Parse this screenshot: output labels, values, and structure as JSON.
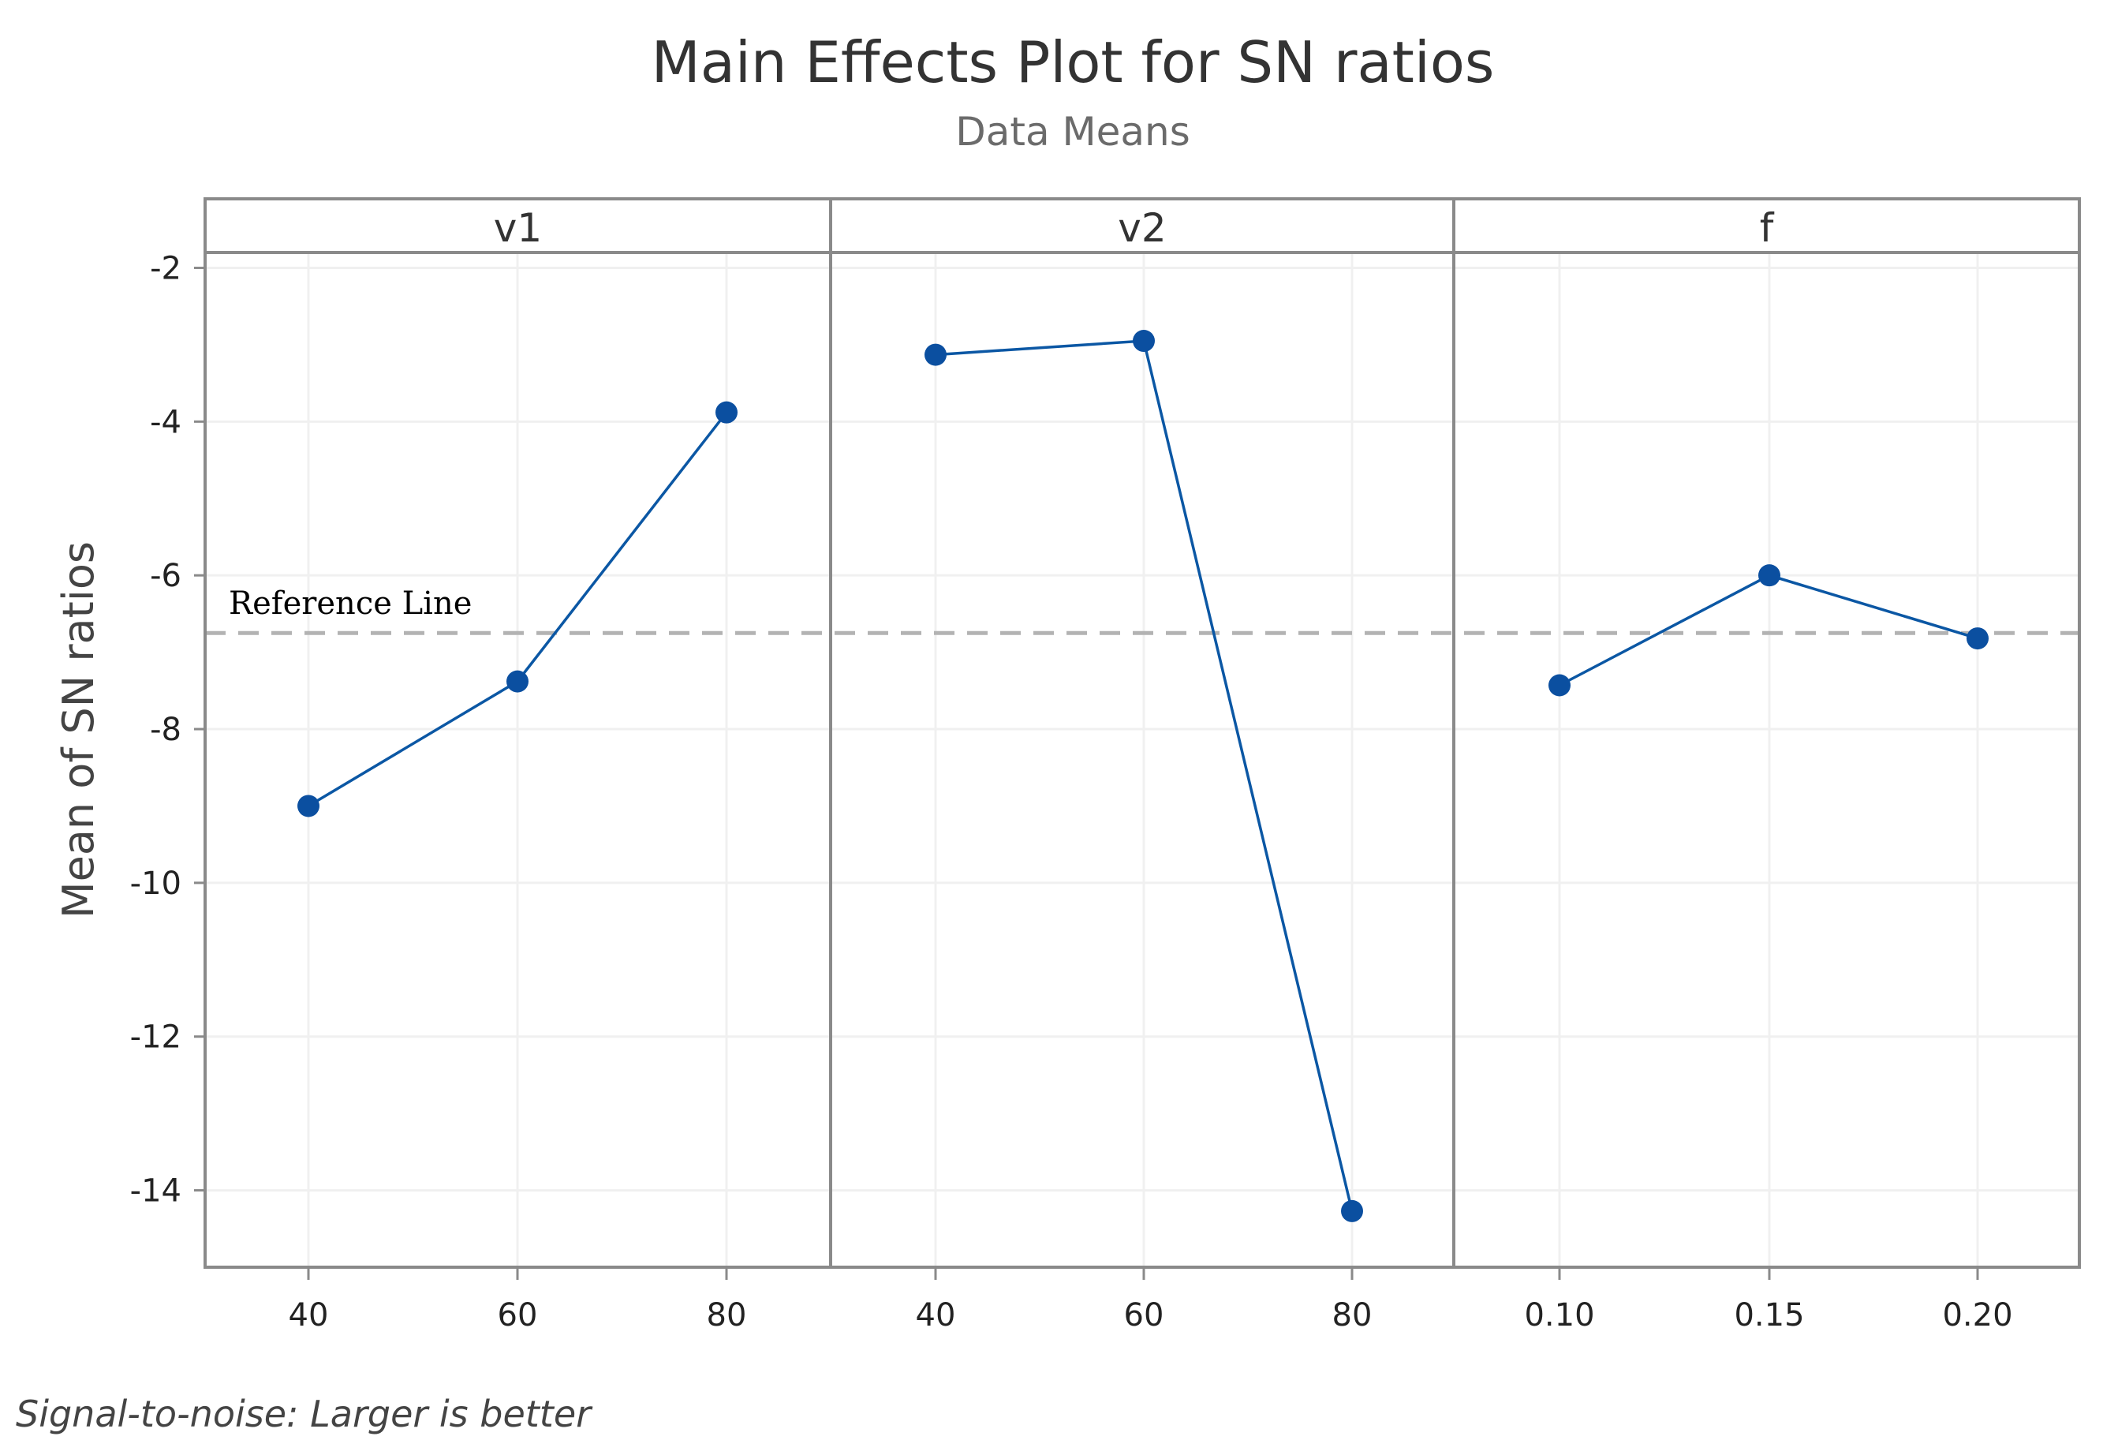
{
  "chart_data": {
    "type": "line",
    "title": "Main Effects Plot for SN ratios",
    "subtitle": "Data Means",
    "ylabel": "Mean of SN ratios",
    "ylim": [
      -15,
      -1.8
    ],
    "yticks": [
      -2,
      -4,
      -6,
      -8,
      -10,
      -12,
      -14
    ],
    "grid": true,
    "reference_line": {
      "label": "Reference Line",
      "value": -6.75
    },
    "footnote": "Signal-to-noise: Larger is better",
    "panels": [
      {
        "name": "v1",
        "categories": [
          "40",
          "60",
          "80"
        ],
        "values": [
          -9.0,
          -7.38,
          -3.88
        ]
      },
      {
        "name": "v2",
        "categories": [
          "40",
          "60",
          "80"
        ],
        "values": [
          -3.13,
          -2.95,
          -14.27
        ]
      },
      {
        "name": "f",
        "categories": [
          "0.10",
          "0.15",
          "0.20"
        ],
        "values": [
          -7.43,
          -6.0,
          -6.82
        ]
      }
    ],
    "colors": {
      "line": "#0b57a4",
      "marker": "#0b4fa0",
      "reference": "#b3b3b3",
      "frame": "#8a8a8a",
      "grid": "#f0f0f0"
    }
  }
}
